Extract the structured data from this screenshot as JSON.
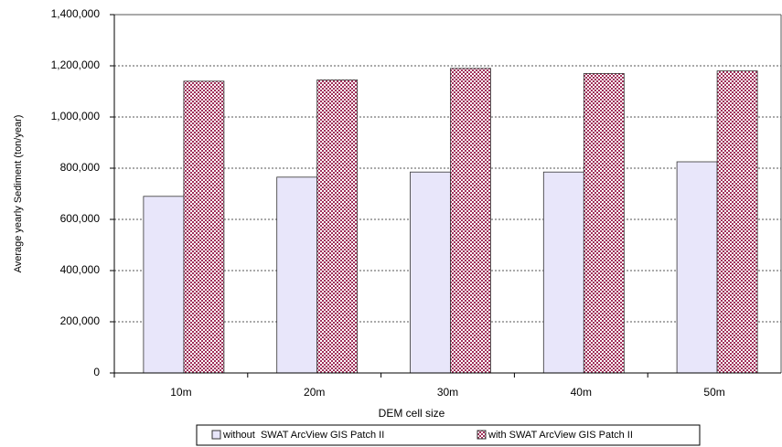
{
  "chart_data": {
    "type": "bar",
    "x_label": "DEM cell size",
    "y_label": "Average yearly Sediment (ton/year)",
    "categories": [
      "10m",
      "20m",
      "30m",
      "40m",
      "50m"
    ],
    "series": [
      {
        "name": "without  SWAT ArcView GIS Patch II",
        "color": "#e8e6fa",
        "values": [
          690000,
          765000,
          785000,
          785000,
          825000
        ]
      },
      {
        "name": "with SWAT ArcView GIS Patch II",
        "color": "#a0305a",
        "pattern": "checker",
        "values": [
          1140000,
          1145000,
          1190000,
          1170000,
          1180000
        ]
      }
    ],
    "ylim": [
      0,
      1400000
    ],
    "yticks": [
      0,
      {
        "value": 200000,
        "label": "200,000"
      },
      {
        "value": 400000,
        "label": "400,000"
      },
      {
        "value": 600000,
        "label": "600,000"
      },
      {
        "value": 800000,
        "label": "800,000"
      },
      {
        "value": 1000000,
        "label": "1,000,000"
      },
      {
        "value": 1200000,
        "label": "1,200,000"
      },
      {
        "value": 1400000,
        "label": "1,400,000"
      }
    ],
    "grid": true,
    "legend": "bottom"
  }
}
